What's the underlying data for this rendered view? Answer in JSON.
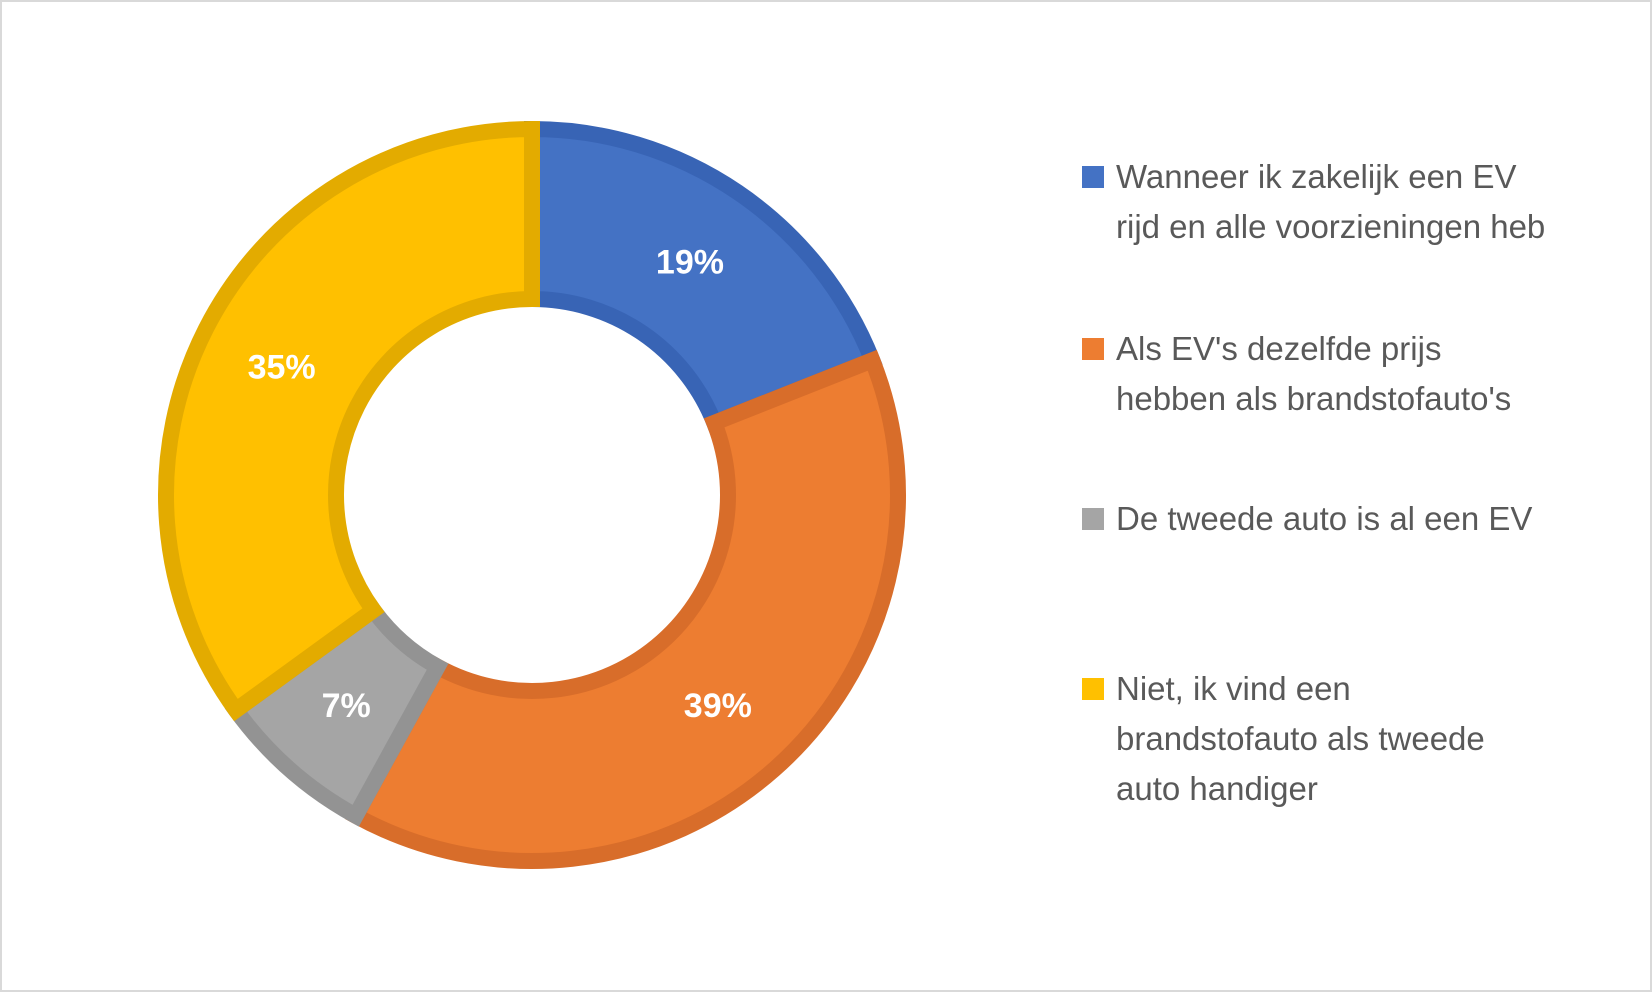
{
  "chart_data": {
    "type": "pie",
    "variant": "donut",
    "slices": [
      {
        "label": "Wanneer ik zakelijk een EV\nrijd en alle voorzieningen heb",
        "value": 19,
        "display": "19%",
        "color": "#4472C4",
        "border": "#3864B5"
      },
      {
        "label": "Als EV's dezelfde prijs\nhebben als brandstofauto's",
        "value": 39,
        "display": "39%",
        "color": "#ED7D31",
        "border": "#D86D2A"
      },
      {
        "label": "De tweede auto is al een EV",
        "value": 7,
        "display": "7%",
        "color": "#A5A5A5",
        "border": "#939393"
      },
      {
        "label": "Niet, ik vind een\nbrandstofauto als tweede\nauto handiger",
        "value": 35,
        "display": "35%",
        "color": "#FFC000",
        "border": "#E3AB00"
      }
    ],
    "legend_position": "right"
  }
}
